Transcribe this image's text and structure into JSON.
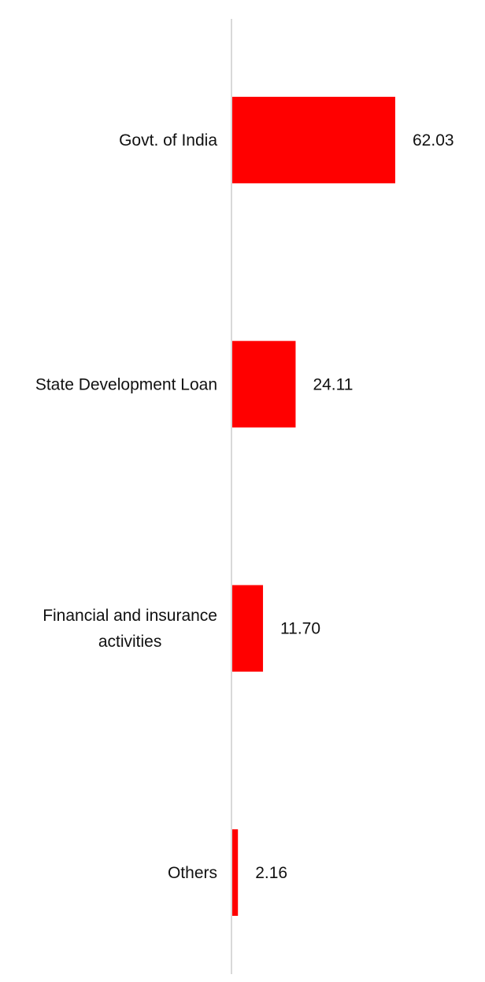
{
  "chart_data": {
    "type": "bar",
    "orientation": "horizontal",
    "categories": [
      "Govt. of India",
      "State Development Loan",
      "Financial and insurance activities",
      "Others"
    ],
    "category_lines": [
      [
        "Govt. of India"
      ],
      [
        "State Development Loan"
      ],
      [
        "Financial and insurance",
        "activities"
      ],
      [
        "Others"
      ]
    ],
    "values": [
      62.03,
      24.11,
      11.7,
      2.16
    ],
    "value_labels": [
      "62.03",
      "24.11",
      "11.70",
      "2.16"
    ],
    "xlim": [
      0,
      62.03
    ],
    "grid": false,
    "legend": "none",
    "bar_color": "#ff0000",
    "axis_color": "#d9d9d9"
  }
}
